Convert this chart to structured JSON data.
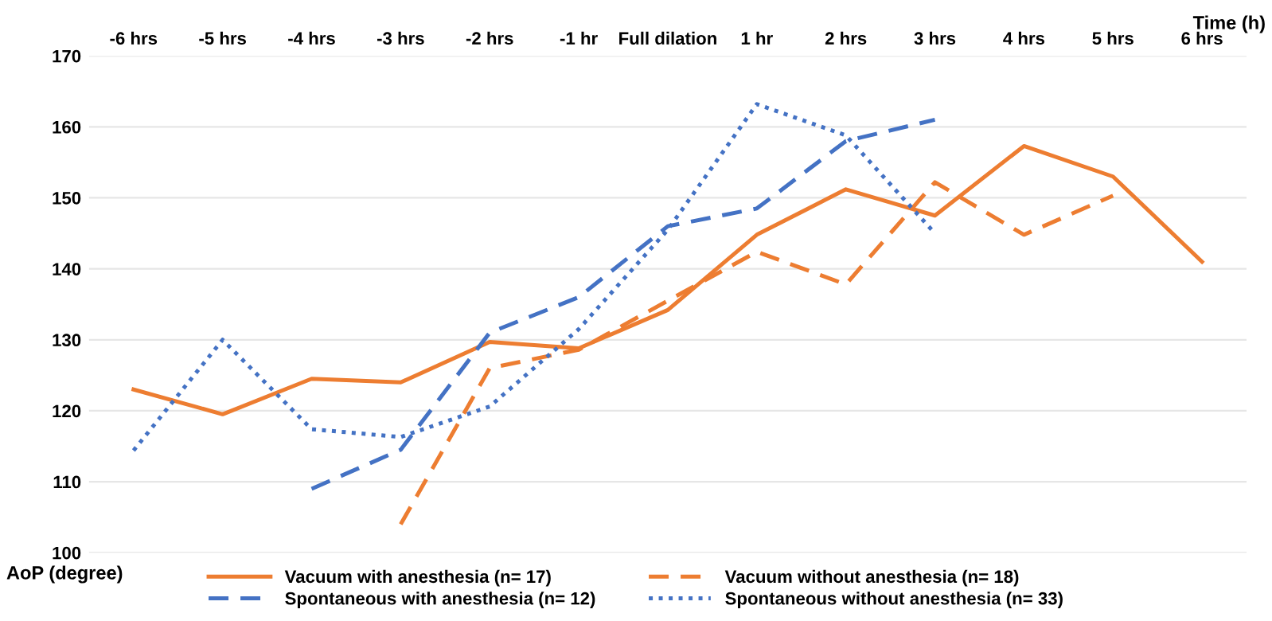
{
  "chart_data": {
    "type": "line",
    "xlabel": "Time (h)",
    "ylabel": "AoP (degree)",
    "categories": [
      "-6 hrs",
      "-5 hrs",
      "-4 hrs",
      "-3 hrs",
      "-2 hrs",
      "-1 hr",
      "Full dilation",
      "1 hr",
      "2 hrs",
      "3 hrs",
      "4 hrs",
      "5 hrs",
      "6 hrs"
    ],
    "ylim": [
      100,
      170
    ],
    "yticks": [
      100,
      110,
      120,
      130,
      140,
      150,
      160,
      170
    ],
    "grid": "y",
    "legend": "bottom",
    "marker": "none",
    "series": [
      {
        "name": "Vacuum with anesthesia (n= 17)",
        "color": "#ed7d31",
        "line_style": "solid",
        "values": [
          123,
          119.5,
          124.5,
          124,
          129.7,
          128.8,
          134.2,
          144.8,
          151.2,
          147.5,
          157.3,
          153,
          141
        ]
      },
      {
        "name": "Spontaneous with anesthesia (n= 12)",
        "color": "#4472c4",
        "line_style": "dashed",
        "values": [
          null,
          null,
          109,
          114.5,
          131,
          136,
          146,
          148.5,
          158,
          161,
          null,
          null,
          null
        ]
      },
      {
        "name": "Vacuum without anesthesia (n= 18)",
        "color": "#ed7d31",
        "line_style": "dashed",
        "values": [
          null,
          null,
          null,
          104,
          126,
          128.6,
          135.5,
          142.4,
          137.8,
          152.2,
          144.8,
          150.3,
          null
        ]
      },
      {
        "name": "Spontaneous without anesthesia (n= 33)",
        "color": "#4472c4",
        "line_style": "dotted",
        "values": [
          114.4,
          130,
          117.4,
          116.3,
          120.6,
          131.5,
          145.5,
          163.2,
          158.8,
          145,
          null,
          null,
          null
        ]
      }
    ]
  }
}
